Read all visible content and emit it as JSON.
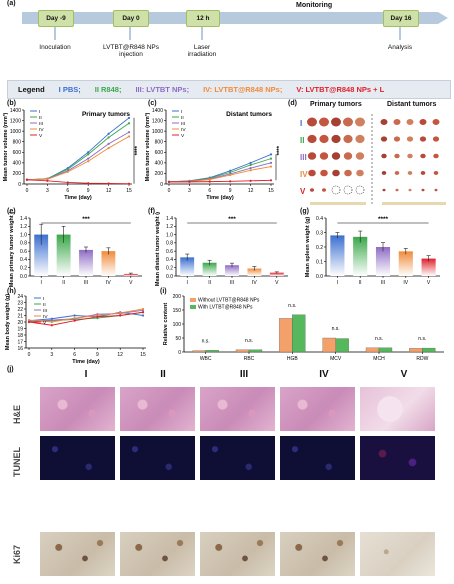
{
  "panel_labels": [
    "(a)",
    "(b)",
    "(c)",
    "(d)",
    "(e)",
    "(f)",
    "(g)",
    "(h)",
    "(i)",
    "(j)"
  ],
  "timeline": {
    "monitoring": "Monitoring",
    "boxes": [
      "Day -9",
      "Day 0",
      "12 h",
      "Day 16"
    ],
    "events": [
      "Inoculation",
      "LVTBT@R848 NPs injection",
      "Laser irradiation",
      "Analysis"
    ]
  },
  "legend": {
    "title": "Legend",
    "items": [
      {
        "label": "I PBS;",
        "color": "#3b6fd0"
      },
      {
        "label": "II R848;",
        "color": "#3aa84a"
      },
      {
        "label": "III: LVTBT NPs;",
        "color": "#8f6cc4"
      },
      {
        "label": "IV: LVTBT@R848 NPs;",
        "color": "#f08a3a"
      },
      {
        "label": "V: LVTBT@R848 NPs + L",
        "color": "#e0202a"
      }
    ]
  },
  "group_colors": [
    "#3b6fd0",
    "#3aa84a",
    "#8f6cc4",
    "#f08a3a",
    "#e0202a"
  ],
  "groups": [
    "I",
    "II",
    "III",
    "IV",
    "V"
  ],
  "photos": {
    "primary": "Primary tumors",
    "distant": "Distant tumors"
  },
  "histology": {
    "columns": [
      "I",
      "II",
      "III",
      "IV",
      "V"
    ],
    "rows": [
      "H&E",
      "TUNEL",
      "Ki67"
    ]
  },
  "chart_data": [
    {
      "type": "line",
      "title": "Primary tumors",
      "xlabel": "Time (day)",
      "ylabel": "Mean tumor volume (mm³)",
      "x": [
        0,
        3,
        6,
        9,
        12,
        15
      ],
      "ylim": [
        0,
        1400
      ],
      "yticks": [
        0,
        200,
        400,
        600,
        800,
        1000,
        1200,
        1400
      ],
      "significance": "****",
      "series": [
        {
          "name": "I",
          "values": [
            80,
            100,
            300,
            600,
            950,
            1250
          ]
        },
        {
          "name": "II",
          "values": [
            80,
            100,
            280,
            560,
            880,
            1150
          ]
        },
        {
          "name": "III",
          "values": [
            80,
            95,
            250,
            480,
            760,
            980
          ]
        },
        {
          "name": "IV",
          "values": [
            80,
            90,
            230,
            430,
            680,
            900
          ]
        },
        {
          "name": "V",
          "values": [
            80,
            60,
            30,
            15,
            10,
            5
          ]
        }
      ]
    },
    {
      "type": "line",
      "title": "Distant tumors",
      "xlabel": "Time (day)",
      "ylabel": "Mean tumor volume (mm³)",
      "x": [
        0,
        3,
        6,
        9,
        12,
        15
      ],
      "ylim": [
        0,
        1400
      ],
      "yticks": [
        0,
        200,
        400,
        600,
        800,
        1000,
        1200,
        1400
      ],
      "significance": "****",
      "series": [
        {
          "name": "I",
          "values": [
            40,
            60,
            120,
            250,
            400,
            560
          ]
        },
        {
          "name": "II",
          "values": [
            40,
            55,
            110,
            220,
            360,
            480
          ]
        },
        {
          "name": "III",
          "values": [
            40,
            50,
            95,
            190,
            300,
            400
          ]
        },
        {
          "name": "IV",
          "values": [
            40,
            45,
            85,
            170,
            260,
            330
          ]
        },
        {
          "name": "V",
          "values": [
            40,
            40,
            45,
            50,
            60,
            70
          ]
        }
      ]
    },
    {
      "type": "bar",
      "ylabel": "Mean primary tumor weight (g)",
      "categories": [
        "I",
        "II",
        "III",
        "IV",
        "V"
      ],
      "values": [
        1.0,
        1.0,
        0.63,
        0.6,
        0.05
      ],
      "errors": [
        0.25,
        0.2,
        0.07,
        0.08,
        0.02
      ],
      "ylim": [
        0,
        1.4
      ],
      "yticks": [
        0.0,
        0.2,
        0.4,
        0.6,
        0.8,
        1.0,
        1.2,
        1.4
      ],
      "significance": "***"
    },
    {
      "type": "bar",
      "ylabel": "Mean distant tumor weight (g)",
      "categories": [
        "I",
        "II",
        "III",
        "IV",
        "V"
      ],
      "values": [
        0.45,
        0.32,
        0.26,
        0.18,
        0.08
      ],
      "errors": [
        0.08,
        0.06,
        0.05,
        0.05,
        0.02
      ],
      "ylim": [
        0,
        1.4
      ],
      "yticks": [
        0.0,
        0.2,
        0.4,
        0.6,
        0.8,
        1.0,
        1.2,
        1.4
      ],
      "significance": "***"
    },
    {
      "type": "bar",
      "ylabel": "Mean spleen weight (g)",
      "categories": [
        "I",
        "II",
        "III",
        "IV",
        "V"
      ],
      "values": [
        0.28,
        0.27,
        0.2,
        0.17,
        0.12
      ],
      "errors": [
        0.02,
        0.04,
        0.03,
        0.02,
        0.02
      ],
      "ylim": [
        0,
        0.4
      ],
      "yticks": [
        0.0,
        0.1,
        0.2,
        0.3,
        0.4
      ],
      "significance": "****"
    },
    {
      "type": "line",
      "ylabel": "Mean body weight (g)",
      "xlabel": "Time (day)",
      "x": [
        0,
        3,
        6,
        9,
        12,
        15
      ],
      "ylim": [
        16,
        24
      ],
      "yticks": [
        16,
        17,
        18,
        19,
        20,
        21,
        22,
        23,
        24
      ],
      "series": [
        {
          "name": "I",
          "values": [
            20.2,
            20.5,
            21.0,
            20.8,
            21.5,
            21.0
          ]
        },
        {
          "name": "II",
          "values": [
            20.0,
            20.2,
            20.4,
            20.6,
            21.0,
            21.5
          ]
        },
        {
          "name": "III",
          "values": [
            20.1,
            20.3,
            20.5,
            21.2,
            21.3,
            21.8
          ]
        },
        {
          "name": "IV",
          "values": [
            20.3,
            20.0,
            20.6,
            21.0,
            21.4,
            22.0
          ]
        },
        {
          "name": "V",
          "values": [
            20.0,
            19.5,
            20.2,
            20.8,
            21.0,
            21.5
          ]
        }
      ]
    },
    {
      "type": "bar",
      "ylabel": "Relative content",
      "categories": [
        "WBC",
        "RBC",
        "HGB",
        "MCV",
        "MCH",
        "RDW"
      ],
      "ylim": [
        0,
        200
      ],
      "yticks": [
        0,
        50,
        100,
        150,
        200
      ],
      "significance": [
        "n.s.",
        "n.s.",
        "n.s.",
        "n.s.",
        "n.s.",
        "n.s."
      ],
      "series": [
        {
          "name": "Without LVTBT@R848 NPs",
          "values": [
            5,
            8,
            120,
            50,
            15,
            13
          ]
        },
        {
          "name": "With LVTBT@R848 NPs",
          "values": [
            6,
            8,
            133,
            48,
            15,
            14
          ]
        }
      ]
    }
  ]
}
